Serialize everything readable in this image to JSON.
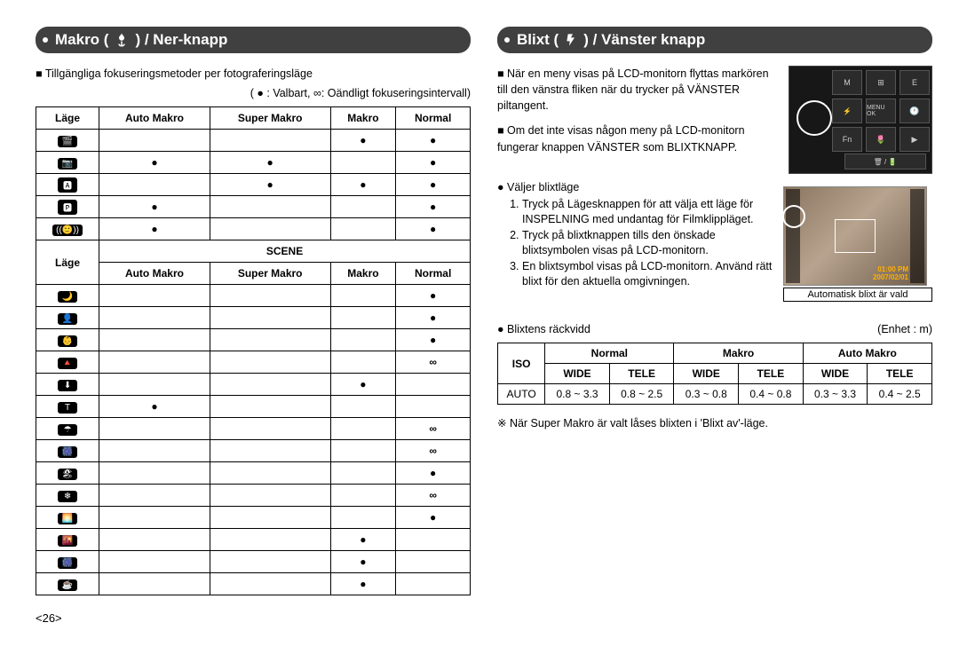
{
  "page_number": "<26>",
  "left": {
    "header_pre": "Makro (",
    "header_post": ") / Ner-knapp",
    "intro": "Tillgängliga fokuseringsmetoder per fotograferingsläge",
    "legend": "( ● : Valbart, ∞: Oändligt fokuseringsintervall)",
    "table": {
      "col_mode": "Läge",
      "cols": [
        "Auto Makro",
        "Super Makro",
        "Makro",
        "Normal"
      ],
      "scene_header": "SCENE",
      "top_mode_icons": [
        "🎬",
        "📷",
        "🅰",
        "🅿",
        "((🙂))"
      ],
      "top_rows": [
        [
          "",
          "",
          "●",
          "●"
        ],
        [
          "●",
          "●",
          "",
          "●"
        ],
        [
          "",
          "●",
          "●",
          "●"
        ],
        [
          "●",
          "",
          "",
          "●"
        ],
        [
          "●",
          "",
          "",
          "●"
        ]
      ],
      "scene_mode_icons": [
        "🌙",
        "👤",
        "👶",
        "🔺",
        "⬇",
        "T",
        "☂",
        "🎆",
        "🏖",
        "❄",
        "🌅",
        "🌇",
        "🎆",
        "☕"
      ],
      "scene_rows": [
        [
          "",
          "",
          "",
          "●"
        ],
        [
          "",
          "",
          "",
          "●"
        ],
        [
          "",
          "",
          "",
          "●"
        ],
        [
          "",
          "",
          "",
          "∞"
        ],
        [
          "",
          "",
          "●",
          ""
        ],
        [
          "●",
          "",
          "",
          ""
        ],
        [
          "",
          "",
          "",
          "∞"
        ],
        [
          "",
          "",
          "",
          "∞"
        ],
        [
          "",
          "",
          "",
          "●"
        ],
        [
          "",
          "",
          "",
          "∞"
        ],
        [
          "",
          "",
          "",
          "●"
        ],
        [
          "",
          "",
          "●",
          ""
        ],
        [
          "",
          "",
          "●",
          ""
        ],
        [
          "",
          "",
          "●",
          ""
        ]
      ]
    }
  },
  "right": {
    "header_pre": "Blixt (",
    "header_post": ") / Vänster knapp",
    "para1": "När en meny visas på LCD-monitorn flyttas markören till den vänstra fliken när du trycker på VÄNSTER piltangent.",
    "para2": "Om det inte visas någon meny på LCD-monitorn fungerar knappen VÄNSTER som BLIXTKNAPP.",
    "select_flash": "Väljer blixtläge",
    "steps": [
      "Tryck på Lägesknappen för att välja ett läge för INSPELNING med undantag för Filmklippläget.",
      "Tryck på blixtknappen tills den önskade blixtsymbolen visas på LCD-monitorn.",
      "En blixtsymbol visas på LCD-monitorn. Använd rätt blixt för den aktuella omgivningen."
    ],
    "dpad_labels": {
      "m": "M",
      "e": "E",
      "menu": "MENU\nOK",
      "fn": "Fn"
    },
    "lcd": {
      "time": "01:00 PM",
      "date": "2007/02/01",
      "caption": "Automatisk blixt är vald"
    },
    "range_label": "Blixtens räckvidd",
    "unit_label": "(Enhet : m)",
    "range_table": {
      "iso": "ISO",
      "groups": [
        "Normal",
        "Makro",
        "Auto Makro"
      ],
      "sub": [
        "WIDE",
        "TELE"
      ],
      "row_label": "AUTO",
      "values": [
        "0.8 ~ 3.3",
        "0.8 ~ 2.5",
        "0.3 ~ 0.8",
        "0.4 ~ 0.8",
        "0.3 ~ 3.3",
        "0.4 ~ 2.5"
      ]
    },
    "footnote": "※ När Super Makro är valt låses blixten i 'Blixt av'-läge."
  },
  "colors": {
    "header_bg": "#404040",
    "chip_bg": "#000000",
    "lcd_ts": "#ffb000"
  }
}
